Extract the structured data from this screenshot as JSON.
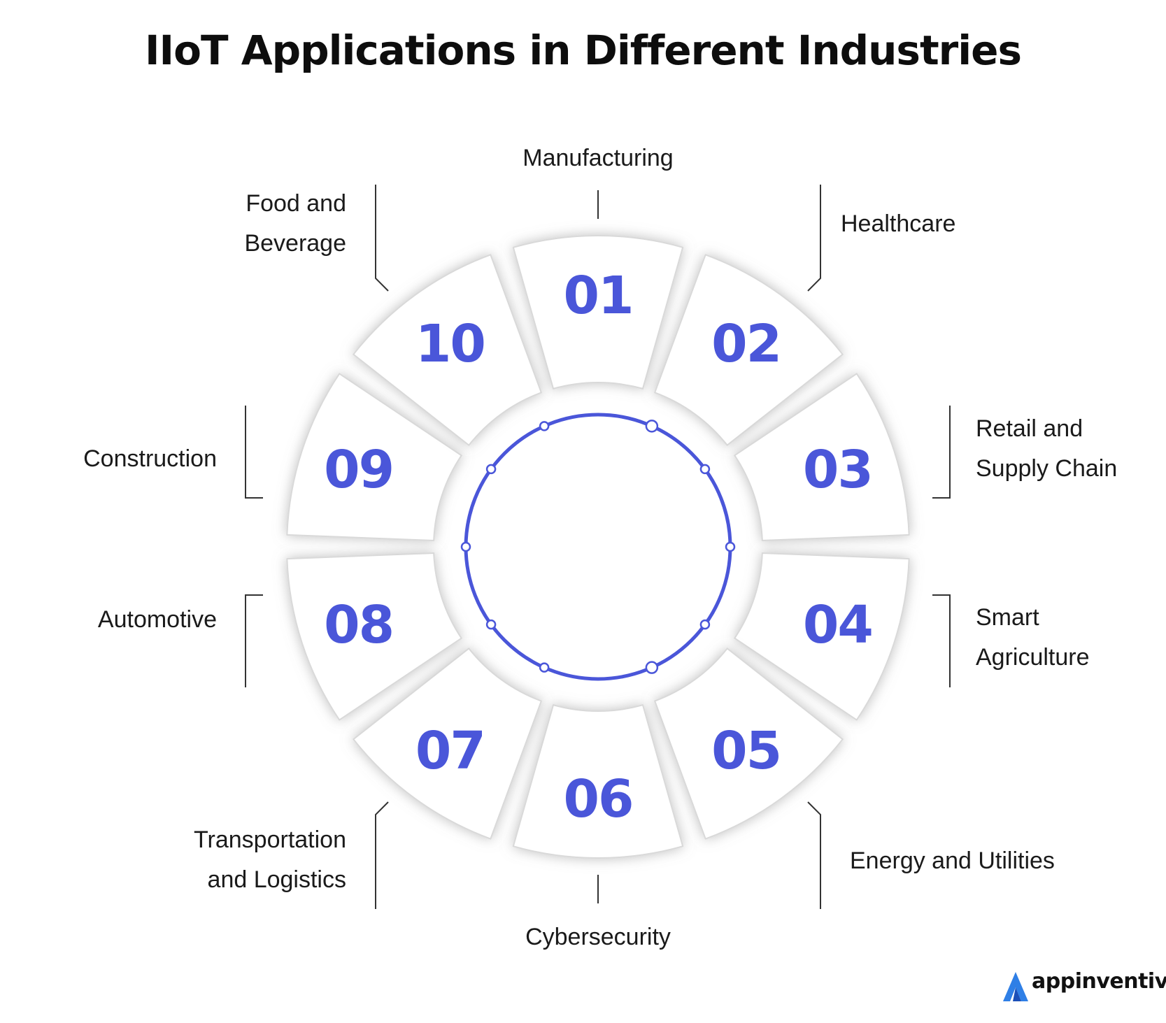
{
  "title": "IIoT Applications in Different Industries",
  "accent_color": "#4a56d9",
  "segments": [
    {
      "number": "01",
      "label": [
        "Manufacturing"
      ]
    },
    {
      "number": "02",
      "label": [
        "Healthcare"
      ]
    },
    {
      "number": "03",
      "label": [
        "Retail and",
        "Supply Chain"
      ]
    },
    {
      "number": "04",
      "label": [
        "Smart",
        "Agriculture"
      ]
    },
    {
      "number": "05",
      "label": [
        "Energy and Utilities"
      ]
    },
    {
      "number": "06",
      "label": [
        "Cybersecurity"
      ]
    },
    {
      "number": "07",
      "label": [
        "Transportation",
        "and Logistics"
      ]
    },
    {
      "number": "08",
      "label": [
        "Automotive"
      ]
    },
    {
      "number": "09",
      "label": [
        "Construction"
      ]
    },
    {
      "number": "10",
      "label": [
        "Food and",
        "Beverage"
      ]
    }
  ],
  "brand": {
    "name": "appinventiv",
    "icon": "appinventiv-logo-icon"
  }
}
